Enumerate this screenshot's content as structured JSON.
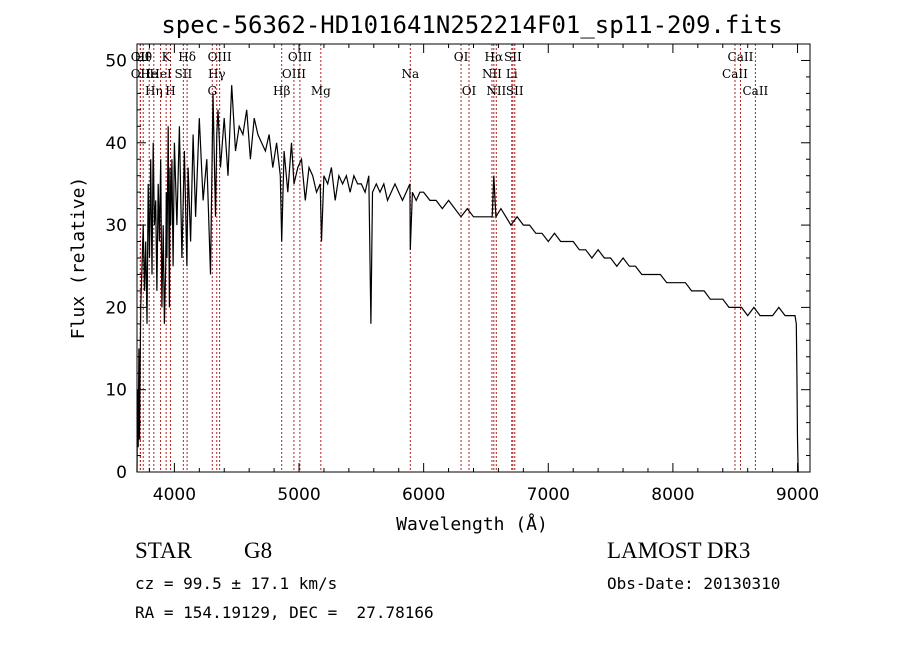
{
  "chart_data": {
    "type": "line",
    "title": "spec-56362-HD101641N252214F01_sp11-209.fits",
    "xlabel": "Wavelength (Å)",
    "ylabel": "Flux (relative)",
    "xlim": [
      3700,
      9100
    ],
    "ylim": [
      0,
      52
    ],
    "xticks": [
      4000,
      5000,
      6000,
      7000,
      8000,
      9000
    ],
    "yticks": [
      0,
      10,
      20,
      30,
      40,
      50
    ],
    "series": [
      {
        "name": "flux",
        "x": [
          3700,
          3705,
          3710,
          3715,
          3720,
          3730,
          3740,
          3750,
          3760,
          3770,
          3780,
          3790,
          3800,
          3810,
          3820,
          3830,
          3840,
          3850,
          3860,
          3870,
          3880,
          3890,
          3900,
          3910,
          3920,
          3930,
          3935,
          3940,
          3950,
          3960,
          3965,
          3970,
          3980,
          3990,
          4000,
          4020,
          4040,
          4060,
          4080,
          4100,
          4110,
          4130,
          4150,
          4170,
          4200,
          4230,
          4260,
          4290,
          4310,
          4330,
          4340,
          4350,
          4370,
          4400,
          4430,
          4460,
          4490,
          4520,
          4550,
          4580,
          4610,
          4640,
          4670,
          4700,
          4730,
          4760,
          4790,
          4820,
          4850,
          4861,
          4880,
          4910,
          4940,
          4960,
          4990,
          5020,
          5050,
          5080,
          5110,
          5140,
          5170,
          5180,
          5200,
          5230,
          5260,
          5290,
          5320,
          5350,
          5380,
          5410,
          5440,
          5470,
          5500,
          5530,
          5560,
          5577,
          5590,
          5620,
          5650,
          5680,
          5710,
          5740,
          5770,
          5800,
          5830,
          5860,
          5890,
          5893,
          5910,
          5940,
          5970,
          6000,
          6050,
          6100,
          6150,
          6200,
          6250,
          6300,
          6350,
          6400,
          6450,
          6500,
          6550,
          6563,
          6580,
          6620,
          6660,
          6700,
          6750,
          6800,
          6850,
          6900,
          6950,
          7000,
          7050,
          7100,
          7150,
          7200,
          7250,
          7300,
          7350,
          7400,
          7450,
          7500,
          7550,
          7600,
          7650,
          7700,
          7750,
          7800,
          7850,
          7900,
          7950,
          8000,
          8050,
          8100,
          8150,
          8200,
          8250,
          8300,
          8350,
          8400,
          8450,
          8500,
          8550,
          8600,
          8650,
          8700,
          8750,
          8800,
          8850,
          8900,
          8950,
          8980,
          8990,
          8995,
          9000,
          9005,
          9010
        ],
        "y": [
          0,
          10,
          3,
          15,
          4,
          20,
          25,
          30,
          22,
          28,
          18,
          35,
          26,
          38,
          24,
          40,
          30,
          33,
          22,
          35,
          28,
          38,
          20,
          30,
          18,
          25,
          34,
          26,
          42,
          20,
          37,
          30,
          38,
          25,
          40,
          30,
          42,
          26,
          39,
          25,
          37,
          28,
          41,
          31,
          43,
          33,
          38,
          24,
          46,
          31,
          41,
          44,
          37,
          43,
          36,
          47,
          39,
          42,
          41,
          44,
          38,
          43,
          41,
          40,
          39,
          41,
          37,
          40,
          36,
          28,
          39,
          34,
          40,
          35,
          37,
          38,
          33,
          37,
          36,
          34,
          35,
          28,
          36,
          35,
          37,
          33,
          36,
          35,
          36,
          34,
          36,
          35,
          35,
          34,
          36,
          18,
          34,
          35,
          34,
          35,
          33,
          34,
          35,
          34,
          33,
          34,
          35,
          27,
          34,
          33,
          34,
          34,
          33,
          33,
          32,
          33,
          32,
          31,
          32,
          31,
          31,
          31,
          31,
          36,
          31,
          32,
          31,
          30,
          31,
          30,
          30,
          29,
          29,
          28,
          29,
          28,
          28,
          28,
          27,
          27,
          26,
          27,
          26,
          26,
          25,
          26,
          25,
          25,
          24,
          24,
          24,
          24,
          23,
          23,
          23,
          23,
          22,
          22,
          22,
          21,
          21,
          21,
          20,
          20,
          20,
          19,
          20,
          19,
          19,
          19,
          20,
          19,
          19,
          19,
          18,
          12,
          4,
          0,
          0
        ]
      }
    ],
    "emission_lines": [
      {
        "w": 3727,
        "t": "OII",
        "r": 0
      },
      {
        "w": 3727,
        "t": "OII",
        "r": 1
      },
      {
        "w": 3750,
        "t": "Hθ",
        "r": 0
      },
      {
        "w": 3798,
        "t": "He",
        "r": 1
      },
      {
        "w": 3835,
        "t": "Hη",
        "r": 2
      },
      {
        "w": 3889,
        "t": "HeI",
        "r": 1
      },
      {
        "w": 3934,
        "t": "K",
        "r": 0
      },
      {
        "w": 3969,
        "t": "H",
        "r": 2
      },
      {
        "w": 4072,
        "t": "SII",
        "r": 1
      },
      {
        "w": 4102,
        "t": "Hδ",
        "r": 0
      },
      {
        "w": 4304,
        "t": "G",
        "r": 2
      },
      {
        "w": 4340,
        "t": "Hγ",
        "r": 1
      },
      {
        "w": 4363,
        "t": "OIII",
        "r": 0
      },
      {
        "w": 4861,
        "t": "Hβ",
        "r": 2
      },
      {
        "w": 4959,
        "t": "OIII",
        "r": 1
      },
      {
        "w": 5007,
        "t": "OIII",
        "r": 0
      },
      {
        "w": 5175,
        "t": "Mg",
        "r": 2
      },
      {
        "w": 5893,
        "t": "Na",
        "r": 1
      },
      {
        "w": 6300,
        "t": "OI",
        "r": 0
      },
      {
        "w": 6364,
        "t": "OI",
        "r": 2
      },
      {
        "w": 6548,
        "t": "NII",
        "r": 1
      },
      {
        "w": 6563,
        "t": "Hα",
        "r": 0
      },
      {
        "w": 6583,
        "t": "NII",
        "r": 2
      },
      {
        "w": 6707,
        "t": "Li",
        "r": 1
      },
      {
        "w": 6716,
        "t": "SII",
        "r": 0
      },
      {
        "w": 6731,
        "t": "SII",
        "r": 2
      },
      {
        "w": 8498,
        "t": "CaII",
        "r": 1
      },
      {
        "w": 8542,
        "t": "CaII",
        "r": 0
      },
      {
        "w": 8662,
        "t": "CaII",
        "r": 2
      }
    ]
  },
  "info": {
    "class": "STAR",
    "subclass": "G8",
    "survey": "LAMOST DR3",
    "cz": "cz = 99.5 ± 17.1 km/s",
    "obs_date": "Obs-Date: 20130310",
    "radec": "RA = 154.19129, DEC =  27.78166"
  }
}
